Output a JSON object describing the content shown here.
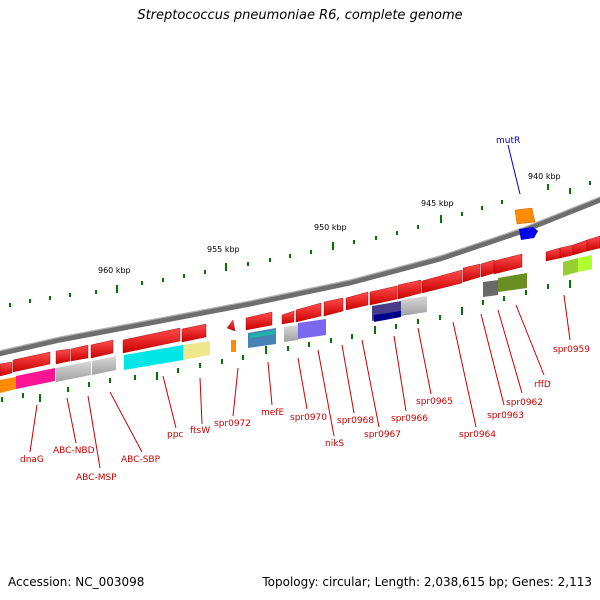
{
  "header": {
    "title": "Streptococcus pneumoniae R6, complete genome"
  },
  "footer": {
    "accession": "Accession: NC_003098",
    "topology": "Topology: circular; Length: 2,038,615 bp; Genes: 2,113"
  },
  "scale_labels": [
    "940 kbp",
    "945 kbp",
    "950 kbp",
    "955 kbp",
    "960 kbp"
  ],
  "gene_labels_forward": [
    "mutR"
  ],
  "gene_labels_reverse": [
    "dnaG",
    "ABC-NBD",
    "ABC-MSP",
    "ABC-SBP",
    "ppc",
    "ftsW",
    "spr0972",
    "mefE",
    "spr0970",
    "nikS",
    "spr0968",
    "spr0967",
    "spr0966",
    "spr0965",
    "spr0964",
    "spr0963",
    "spr0962",
    "rffD",
    "spr0959"
  ],
  "colors": {
    "cds": "#ff0000",
    "forward_gene": "#0000cc",
    "backbone": "#808080",
    "ticks": "#007700",
    "label_reverse": "#cc0000",
    "label_forward": "#0000cc"
  }
}
